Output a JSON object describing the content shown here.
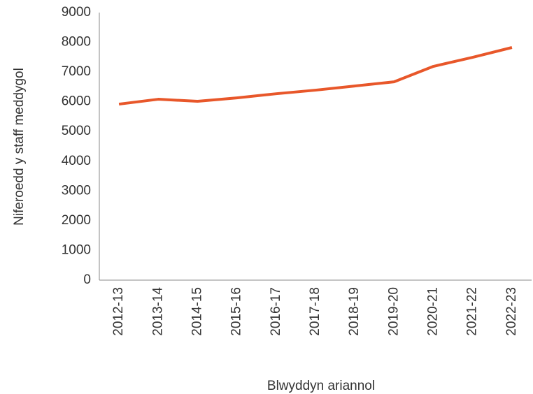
{
  "chart_data": {
    "type": "line",
    "x_label": "Blwyddyn ariannol",
    "y_label": "Niferoedd y staff meddygol",
    "categories": [
      "2012-13",
      "2013-14",
      "2014-15",
      "2015-16",
      "2016-17",
      "2017-18",
      "2018-19",
      "2019-20",
      "2020-21",
      "2021-22",
      "2022-23"
    ],
    "series": [
      {
        "color": "#e8572a",
        "values": [
          5920,
          6085,
          6015,
          6130,
          6270,
          6390,
          6530,
          6670,
          7190,
          7495,
          7825
        ]
      }
    ],
    "ylim": [
      0,
      9000
    ],
    "yticks": [
      0,
      1000,
      2000,
      3000,
      4000,
      5000,
      6000,
      7000,
      8000,
      9000
    ],
    "grid": false
  }
}
